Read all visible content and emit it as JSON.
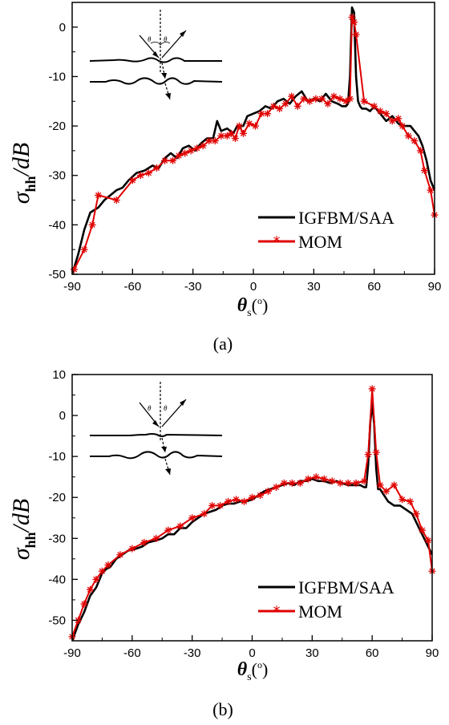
{
  "colors": {
    "igfbm": "#000000",
    "mom": "#e00000",
    "axis": "#000000"
  },
  "chart_data": [
    {
      "type": "line",
      "caption": "(a)",
      "xlabel": "θs(°)",
      "ylabel": "σhh/dB",
      "xlim": [
        -90,
        90
      ],
      "ylim": [
        -50,
        5
      ],
      "xticks": [
        -90,
        -60,
        -30,
        0,
        30,
        60,
        90
      ],
      "yticks": [
        -50,
        -40,
        -30,
        -20,
        -10,
        0
      ],
      "legend_position": "bottom-right",
      "series": [
        {
          "name": "IGFBM/SAA",
          "color": "#000000",
          "marker": "none",
          "x": [
            -90,
            -87,
            -84,
            -81,
            -79,
            -77,
            -74,
            -71,
            -68,
            -65,
            -62,
            -58,
            -54,
            -50,
            -47,
            -44,
            -41,
            -38,
            -35,
            -32,
            -29,
            -26,
            -23,
            -20,
            -18,
            -16,
            -13,
            -10,
            -8,
            -5,
            -3,
            0,
            3,
            6,
            9,
            12,
            15,
            18,
            21,
            24,
            27,
            30,
            33,
            36,
            39,
            42,
            44,
            46,
            47,
            48,
            49,
            50,
            51,
            52,
            53,
            54,
            56,
            58,
            60,
            63,
            66,
            69,
            72,
            75,
            78,
            80,
            82,
            84,
            86,
            88,
            90
          ],
          "y": [
            -50,
            -46,
            -41,
            -37.5,
            -37,
            -36.5,
            -35,
            -34,
            -33,
            -32.5,
            -31,
            -29.5,
            -29,
            -28,
            -28.5,
            -26.5,
            -25.5,
            -26.5,
            -24.5,
            -24,
            -25,
            -23.5,
            -22.5,
            -22.5,
            -19,
            -21,
            -20.5,
            -21.5,
            -20,
            -20,
            -18,
            -17.5,
            -17,
            -16,
            -16.5,
            -15,
            -14.5,
            -15.5,
            -14,
            -13,
            -15,
            -14.5,
            -15,
            -13.5,
            -15,
            -15.5,
            -16,
            -16,
            -15.5,
            -10,
            4,
            3,
            -10,
            -15,
            -16,
            -16.5,
            -16.5,
            -17,
            -16,
            -17.5,
            -19,
            -18,
            -19.5,
            -20,
            -20,
            -21,
            -22,
            -24,
            -27,
            -31,
            -33
          ]
        },
        {
          "name": "MOM",
          "color": "#e00000",
          "marker": "asterisk",
          "x": [
            -89,
            -84,
            -80,
            -77,
            -68,
            -60,
            -56,
            -52,
            -48,
            -44,
            -40,
            -37,
            -34,
            -31,
            -28,
            -25,
            -22,
            -19,
            -16,
            -13,
            -11,
            -9,
            -7,
            -5,
            -2,
            1,
            4,
            7,
            10,
            13,
            16,
            19,
            22,
            25,
            28,
            31,
            34,
            37,
            40,
            43,
            46,
            48,
            49,
            50,
            51,
            55,
            60,
            63,
            66,
            69,
            72,
            74,
            77,
            80,
            83,
            85,
            88,
            90
          ],
          "y": [
            -49,
            -45,
            -40,
            -34,
            -35,
            -31,
            -30,
            -29.5,
            -28.5,
            -27,
            -27,
            -26,
            -25.5,
            -25,
            -24.5,
            -24,
            -23,
            -23,
            -22,
            -22,
            -21.5,
            -22.5,
            -20,
            -21.5,
            -19.5,
            -20,
            -17.5,
            -17.5,
            -16,
            -16.5,
            -15.5,
            -14,
            -16,
            -14.5,
            -15,
            -14.5,
            -14.5,
            -15.5,
            -14,
            -14.5,
            -15,
            -14.5,
            2,
            1,
            -1.5,
            -15,
            -16,
            -17,
            -17.5,
            -19,
            -18.5,
            -20,
            -22,
            -23,
            -25,
            -29,
            -33,
            -38
          ]
        }
      ]
    },
    {
      "type": "line",
      "caption": "(b)",
      "xlabel": "θs(°)",
      "ylabel": "σhh/dB",
      "xlim": [
        -90,
        90
      ],
      "ylim": [
        -55,
        10
      ],
      "xticks": [
        -90,
        -60,
        -30,
        0,
        30,
        60,
        90
      ],
      "yticks": [
        -50,
        -40,
        -30,
        -20,
        -10,
        0,
        10
      ],
      "legend_position": "bottom-right",
      "series": [
        {
          "name": "IGFBM/SAA",
          "color": "#000000",
          "marker": "none",
          "x": [
            -90,
            -87,
            -84,
            -81,
            -78,
            -75,
            -73,
            -71,
            -68,
            -65,
            -62,
            -58,
            -55,
            -52,
            -48,
            -45,
            -42,
            -39,
            -36,
            -33,
            -30,
            -27,
            -24,
            -21,
            -18,
            -15,
            -12,
            -9,
            -6,
            -3,
            0,
            3,
            6,
            9,
            12,
            15,
            18,
            21,
            24,
            27,
            30,
            33,
            36,
            39,
            42,
            45,
            48,
            51,
            54,
            56,
            57,
            58,
            59,
            60,
            61,
            62,
            63,
            64,
            66,
            68,
            71,
            74,
            77,
            80,
            83,
            86,
            88,
            90
          ],
          "y": [
            -55,
            -51,
            -48,
            -44,
            -42,
            -38.5,
            -37.5,
            -37,
            -35,
            -34,
            -33,
            -32.5,
            -32,
            -31,
            -30.5,
            -30,
            -29,
            -29,
            -27.5,
            -27.5,
            -26,
            -25,
            -24,
            -23.5,
            -23,
            -22,
            -21.5,
            -21.5,
            -21,
            -21,
            -20.5,
            -19.5,
            -18.5,
            -18,
            -17.5,
            -17,
            -16.5,
            -17,
            -16,
            -16,
            -15.5,
            -16,
            -16,
            -16.5,
            -16,
            -16.5,
            -17,
            -17,
            -17,
            -17.5,
            -17.5,
            -12,
            -2,
            3,
            -2,
            -13,
            -18,
            -18,
            -19.5,
            -21,
            -22,
            -22,
            -23,
            -24,
            -27,
            -30,
            -32,
            -34
          ]
        },
        {
          "name": "MOM",
          "color": "#e00000",
          "marker": "asterisk",
          "x": [
            -90,
            -87,
            -84,
            -81,
            -78,
            -75,
            -72,
            -66,
            -60,
            -54,
            -48,
            -42,
            -36,
            -30,
            -24,
            -20,
            -16,
            -12,
            -8,
            -4,
            0,
            4,
            8,
            12,
            16,
            20,
            24,
            28,
            32,
            36,
            40,
            44,
            48,
            52,
            56,
            58,
            60,
            62,
            64,
            67,
            71,
            75,
            79,
            82,
            85,
            88,
            90
          ],
          "y": [
            -54,
            -50,
            -46,
            -42.5,
            -40,
            -38,
            -36.5,
            -34,
            -32.5,
            -31,
            -30,
            -28,
            -27,
            -25,
            -24,
            -22,
            -22,
            -21,
            -20.5,
            -21,
            -20,
            -19.5,
            -18.5,
            -17.5,
            -16.5,
            -16.5,
            -16.5,
            -15.5,
            -15,
            -15.5,
            -16,
            -16.5,
            -16.5,
            -16.5,
            -16,
            -9.5,
            6.5,
            -9,
            -17,
            -18.5,
            -17,
            -20.5,
            -21,
            -24,
            -28,
            -30.5,
            -38
          ]
        }
      ]
    }
  ],
  "legend_labels": [
    "IGFBM/SAA",
    "MOM"
  ],
  "captions": [
    "(a)",
    "(b)"
  ]
}
